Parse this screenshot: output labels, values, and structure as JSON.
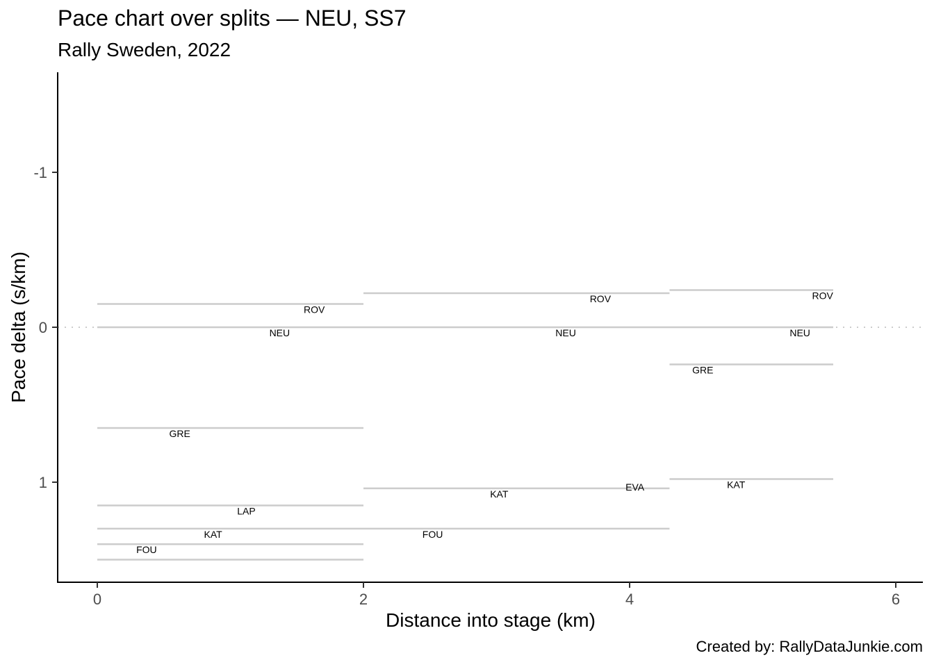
{
  "title": "Pace chart over splits — NEU, SS7",
  "subtitle": "Rally Sweden, 2022",
  "caption": "Created by: RallyDataJunkie.com",
  "chart_data": {
    "type": "line",
    "title": "Pace chart over splits — NEU, SS7",
    "subtitle": "Rally Sweden, 2022",
    "xlabel": "Distance into stage (km)",
    "ylabel": "Pace delta (s/km)",
    "xlim": [
      -0.3,
      6.2
    ],
    "ylim": [
      1.65,
      -1.65
    ],
    "y_reversed": true,
    "x_ticks": [
      0,
      2,
      4,
      6
    ],
    "y_ticks": [
      -1,
      0,
      1
    ],
    "grid": false,
    "reference_line": {
      "y": 0,
      "style": "dotted"
    },
    "line_color": "#cccccc",
    "segments": [
      {
        "name": "ROV",
        "x0": 0,
        "x1": 2.0,
        "y": -0.15,
        "label_x": 1.63
      },
      {
        "name": "NEU",
        "x0": 0,
        "x1": 2.0,
        "y": 0.0,
        "label_x": 1.37
      },
      {
        "name": "GRE",
        "x0": 0,
        "x1": 2.0,
        "y": 0.65,
        "label_x": 0.62
      },
      {
        "name": "LAP",
        "x0": 0,
        "x1": 2.0,
        "y": 1.15,
        "label_x": 1.12
      },
      {
        "name": "KAT",
        "x0": 0,
        "x1": 2.0,
        "y": 1.3,
        "label_x": 0.87
      },
      {
        "name": "FOU",
        "x0": 0,
        "x1": 2.0,
        "y": 1.4,
        "label_x": 0.37
      },
      {
        "name": "",
        "x0": 0,
        "x1": 2.0,
        "y": 1.5,
        "label_x": null
      },
      {
        "name": "ROV",
        "x0": 2.0,
        "x1": 4.3,
        "y": -0.22,
        "label_x": 3.78
      },
      {
        "name": "NEU",
        "x0": 2.0,
        "x1": 4.3,
        "y": 0.0,
        "label_x": 3.52
      },
      {
        "name": "KAT",
        "x0": 2.0,
        "x1": 4.3,
        "y": 1.04,
        "label_x": 3.02
      },
      {
        "name": "FOU",
        "x0": 2.0,
        "x1": 4.3,
        "y": 1.3,
        "label_x": 2.52
      },
      {
        "name": "ROV",
        "x0": 4.3,
        "x1": 5.53,
        "y": -0.24,
        "label_x": 5.45
      },
      {
        "name": "NEU",
        "x0": 4.3,
        "x1": 5.53,
        "y": 0.0,
        "label_x": 5.28
      },
      {
        "name": "GRE",
        "x0": 4.3,
        "x1": 5.53,
        "y": 0.24,
        "label_x": 4.55
      },
      {
        "name": "KAT",
        "x0": 4.3,
        "x1": 5.53,
        "y": 0.98,
        "label_x": 4.8
      }
    ],
    "free_labels": [
      {
        "name": "EVA",
        "x": 4.04,
        "y": 1.04
      }
    ]
  }
}
